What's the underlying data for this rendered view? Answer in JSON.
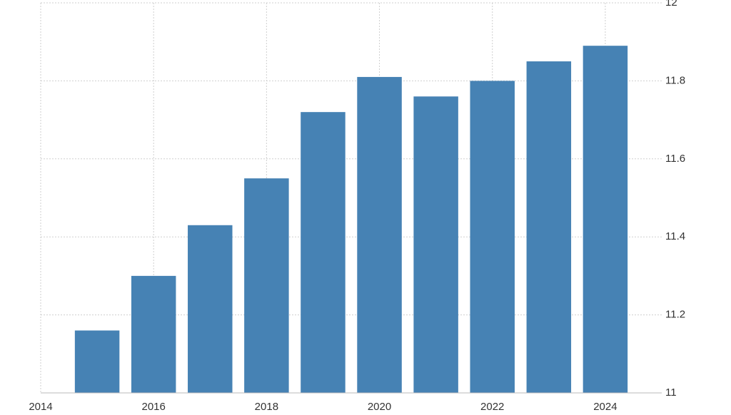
{
  "chart_data": {
    "type": "bar",
    "x": [
      2015,
      2016,
      2017,
      2018,
      2019,
      2020,
      2021,
      2022,
      2023,
      2024
    ],
    "values": [
      11.16,
      11.3,
      11.43,
      11.55,
      11.72,
      11.81,
      11.76,
      11.8,
      11.85,
      11.89
    ],
    "color": "#4682b4",
    "xlim": [
      2014,
      2025
    ],
    "xticks": [
      2014,
      2016,
      2018,
      2020,
      2022,
      2024
    ],
    "ylim": [
      11,
      12
    ],
    "yticks": [
      11,
      11.2,
      11.4,
      11.6,
      11.8,
      12
    ],
    "grid": true
  }
}
